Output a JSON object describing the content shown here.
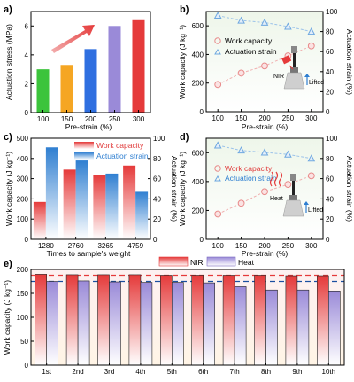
{
  "chart_data": [
    {
      "id": "a",
      "panel_label": "a)",
      "type": "bar",
      "xlabel": "Pre-strain (%)",
      "ylabel": "Actuation stress (MPa)",
      "categories": [
        "100",
        "150",
        "200",
        "250",
        "300"
      ],
      "values": [
        3.0,
        3.3,
        4.4,
        6.0,
        6.4
      ],
      "ylim": [
        0,
        7
      ],
      "yticks": [
        "0",
        "2",
        "4",
        "6"
      ],
      "colors": [
        "#3cc43c",
        "#f5a623",
        "#2f6fe0",
        "#9a8ad8",
        "#e53a3a"
      ]
    },
    {
      "id": "b",
      "panel_label": "b)",
      "type": "scatter",
      "xlabel": "Pre-strain (%)",
      "ylabel": "Work capacity (J kg⁻¹)",
      "y2label": "Actuation strain (%)",
      "x": [
        100,
        150,
        200,
        250,
        300
      ],
      "xticks": [
        "100",
        "150",
        "200",
        "250",
        "300"
      ],
      "ylim": [
        0,
        700
      ],
      "yticks": [
        "0",
        "200",
        "400",
        "600"
      ],
      "y2lim": [
        0,
        100
      ],
      "y2ticks": [
        "0",
        "20",
        "40",
        "60",
        "80",
        "100"
      ],
      "series": [
        {
          "name": "Work capacity",
          "axis": "left",
          "values": [
            190,
            270,
            320,
            390,
            460
          ],
          "color": "#e88a8a"
        },
        {
          "name": "Actuation strain",
          "axis": "right",
          "values": [
            96,
            91,
            89,
            85,
            80
          ],
          "color": "#6fa8e0"
        }
      ],
      "inset_labels": [
        "NIR",
        "Lifted"
      ]
    },
    {
      "id": "c",
      "panel_label": "c)",
      "type": "bar",
      "xlabel": "Times to sample's weight",
      "ylabel": "Work capacity (J kg⁻¹)",
      "y2label": "Actuation strain (%)",
      "categories": [
        "1280",
        "2760",
        "3265",
        "4759"
      ],
      "ylim": [
        0,
        500
      ],
      "yticks": [
        "0",
        "100",
        "200",
        "300",
        "400",
        "500"
      ],
      "y2lim": [
        0,
        100
      ],
      "y2ticks": [
        "0",
        "20",
        "40",
        "60",
        "80",
        "100"
      ],
      "series": [
        {
          "name": "Work capacity",
          "axis": "left",
          "values": [
            185,
            345,
            320,
            365
          ],
          "color": "#e53a3a"
        },
        {
          "name": "Actuation strain",
          "axis": "right",
          "values": [
            91,
            78,
            65,
            47
          ],
          "color": "#2f7fd1"
        }
      ]
    },
    {
      "id": "d",
      "panel_label": "d)",
      "type": "scatter",
      "xlabel": "Pre-strain (%)",
      "ylabel": "Work capacity (J kg⁻¹)",
      "y2label": "Actuation strain (%)",
      "x": [
        100,
        150,
        200,
        250,
        300
      ],
      "xticks": [
        "100",
        "150",
        "200",
        "250",
        "300"
      ],
      "ylim": [
        0,
        700
      ],
      "yticks": [
        "0",
        "200",
        "400",
        "600"
      ],
      "y2lim": [
        0,
        100
      ],
      "y2ticks": [
        "0",
        "20",
        "40",
        "60",
        "80",
        "100"
      ],
      "series": [
        {
          "name": "Work capacity",
          "axis": "left",
          "values": [
            175,
            250,
            330,
            380,
            440
          ],
          "color": "#e88a8a"
        },
        {
          "name": "Actuation strain",
          "axis": "right",
          "values": [
            93,
            88,
            86,
            84,
            80
          ],
          "color": "#6fa8e0"
        }
      ],
      "inset_labels": [
        "Heat",
        "Lifted"
      ]
    },
    {
      "id": "e",
      "panel_label": "e)",
      "type": "bar",
      "ylabel": "Work capacity (J kg⁻¹)",
      "categories": [
        "1st",
        "2nd",
        "3rd",
        "4th",
        "5th",
        "6th",
        "7th",
        "8th",
        "9th",
        "10th"
      ],
      "ylim": [
        0,
        200
      ],
      "yticks": [
        "0",
        "50",
        "100",
        "150",
        "200"
      ],
      "series": [
        {
          "name": "NIR",
          "values": [
            190,
            189,
            189,
            189,
            188,
            188,
            188,
            188,
            187,
            187
          ],
          "color": "#e53a3a"
        },
        {
          "name": "Heat",
          "values": [
            175,
            176,
            174,
            173,
            173,
            172,
            164,
            157,
            157,
            155
          ],
          "color": "#9a8ad8"
        }
      ],
      "ref_lines": [
        {
          "value": 188,
          "color": "#e53a3a"
        },
        {
          "value": 175,
          "color": "#1a4fa0"
        }
      ]
    }
  ]
}
